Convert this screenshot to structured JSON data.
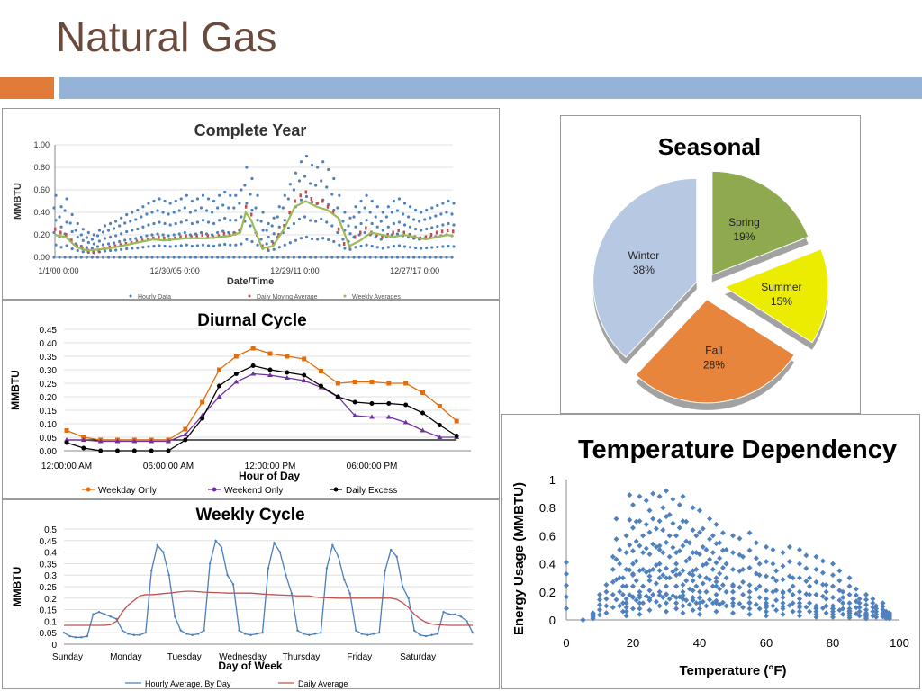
{
  "slide": {
    "title": "Natural Gas",
    "colors": {
      "title": "#6b4a3e",
      "accent_orange": "#e07b39",
      "accent_blue": "#95b3d7"
    }
  },
  "chart_data": [
    {
      "id": "complete-year",
      "type": "scatter",
      "title": "Complete Year",
      "xlabel": "Date/Time",
      "ylabel": "MMBTU",
      "ylim": [
        0,
        1
      ],
      "yticks": [
        "0.00",
        "0.20",
        "0.40",
        "0.60",
        "0.80",
        "1.00"
      ],
      "xticks": [
        "1/1/00 0:00",
        "12/30/05 0:00",
        "12/29/11 0:00",
        "12/27/17 0:00"
      ],
      "series": [
        {
          "name": "Hourly Data",
          "color": "#4f81bd",
          "x": [
            0,
            5,
            10,
            15,
            20,
            25,
            30,
            35,
            40,
            45,
            50,
            55,
            60,
            65,
            70,
            75,
            80,
            85,
            90,
            95,
            100,
            105,
            110,
            115,
            120,
            125,
            130,
            135,
            140,
            145,
            150,
            155,
            160,
            165,
            170,
            175,
            180,
            185,
            190,
            195,
            200,
            205,
            210,
            215,
            220,
            225,
            230,
            235,
            240,
            245,
            250,
            255,
            260,
            265,
            270,
            275,
            280,
            285,
            290,
            295,
            300,
            305,
            310,
            315,
            320,
            325,
            330,
            335,
            340,
            345,
            350,
            355,
            360,
            365
          ],
          "y": [
            0.55,
            0.45,
            0.52,
            0.38,
            0.3,
            0.25,
            0.22,
            0.2,
            0.24,
            0.28,
            0.3,
            0.32,
            0.35,
            0.38,
            0.4,
            0.42,
            0.45,
            0.48,
            0.5,
            0.52,
            0.5,
            0.48,
            0.5,
            0.52,
            0.55,
            0.5,
            0.52,
            0.55,
            0.52,
            0.5,
            0.55,
            0.58,
            0.55,
            0.55,
            0.6,
            0.8,
            0.7,
            0.55,
            0.4,
            0.3,
            0.35,
            0.45,
            0.55,
            0.65,
            0.75,
            0.85,
            0.9,
            0.82,
            0.8,
            0.85,
            0.78,
            0.7,
            0.55,
            0.4,
            0.35,
            0.45,
            0.5,
            0.55,
            0.5,
            0.45,
            0.4,
            0.45,
            0.5,
            0.52,
            0.48,
            0.45,
            0.42,
            0.4,
            0.42,
            0.44,
            0.46,
            0.48,
            0.5,
            0.48
          ]
        },
        {
          "name": "Daily Moving Average",
          "color": "#c0504d",
          "x": [
            0,
            5,
            10,
            15,
            20,
            25,
            30,
            35,
            40,
            45,
            50,
            55,
            60,
            65,
            70,
            75,
            80,
            85,
            90,
            95,
            100,
            105,
            110,
            115,
            120,
            125,
            130,
            135,
            140,
            145,
            150,
            155,
            160,
            165,
            170,
            175,
            180,
            185,
            190,
            195,
            200,
            205,
            210,
            215,
            220,
            225,
            230,
            235,
            240,
            245,
            250,
            255,
            260,
            265,
            270,
            275,
            280,
            285,
            290,
            295,
            300,
            305,
            310,
            315,
            320,
            325,
            330,
            335,
            340,
            345,
            350,
            355,
            360,
            365
          ],
          "y": [
            0.25,
            0.22,
            0.2,
            0.15,
            0.1,
            0.08,
            0.06,
            0.05,
            0.06,
            0.08,
            0.09,
            0.1,
            0.11,
            0.12,
            0.13,
            0.14,
            0.15,
            0.16,
            0.17,
            0.18,
            0.17,
            0.16,
            0.17,
            0.18,
            0.19,
            0.18,
            0.19,
            0.2,
            0.19,
            0.18,
            0.19,
            0.21,
            0.2,
            0.21,
            0.25,
            0.45,
            0.38,
            0.2,
            0.1,
            0.08,
            0.12,
            0.2,
            0.28,
            0.4,
            0.5,
            0.55,
            0.58,
            0.52,
            0.48,
            0.5,
            0.45,
            0.4,
            0.25,
            0.12,
            0.1,
            0.18,
            0.22,
            0.26,
            0.22,
            0.2,
            0.18,
            0.2,
            0.22,
            0.24,
            0.22,
            0.2,
            0.18,
            0.17,
            0.18,
            0.2,
            0.22,
            0.23,
            0.24,
            0.23
          ]
        },
        {
          "name": "Weekly Averages",
          "color": "#9bbb59",
          "x": [
            0,
            10,
            20,
            30,
            40,
            50,
            60,
            70,
            80,
            90,
            100,
            110,
            120,
            130,
            140,
            150,
            160,
            170,
            175,
            180,
            190,
            200,
            210,
            220,
            230,
            240,
            250,
            260,
            270,
            280,
            290,
            300,
            310,
            320,
            330,
            340,
            350,
            360,
            365
          ],
          "y": [
            0.2,
            0.18,
            0.09,
            0.06,
            0.07,
            0.08,
            0.1,
            0.12,
            0.14,
            0.16,
            0.15,
            0.16,
            0.17,
            0.17,
            0.17,
            0.18,
            0.19,
            0.22,
            0.4,
            0.33,
            0.08,
            0.1,
            0.25,
            0.45,
            0.5,
            0.45,
            0.42,
            0.35,
            0.1,
            0.15,
            0.22,
            0.2,
            0.18,
            0.2,
            0.18,
            0.16,
            0.18,
            0.2,
            0.19
          ]
        }
      ]
    },
    {
      "id": "diurnal",
      "type": "line",
      "title": "Diurnal Cycle",
      "xlabel": "Hour of Day",
      "ylabel": "MMBTU",
      "ylim": [
        0,
        0.45
      ],
      "yticks": [
        "0.00",
        "0.05",
        "0.10",
        "0.15",
        "0.20",
        "0.25",
        "0.30",
        "0.35",
        "0.40",
        "0.45"
      ],
      "xticks": [
        "12:00:00 AM",
        "06:00:00 AM",
        "12:00:00 PM",
        "06:00:00 PM"
      ],
      "x": [
        0,
        1,
        2,
        3,
        4,
        5,
        6,
        7,
        8,
        9,
        10,
        11,
        12,
        13,
        14,
        15,
        16,
        17,
        18,
        19,
        20,
        21,
        22,
        23
      ],
      "series": [
        {
          "name": "Weekday Only",
          "color": "#e46c0a",
          "marker": "square",
          "values": [
            0.075,
            0.05,
            0.04,
            0.04,
            0.04,
            0.04,
            0.04,
            0.08,
            0.18,
            0.3,
            0.35,
            0.38,
            0.36,
            0.35,
            0.34,
            0.295,
            0.25,
            0.255,
            0.255,
            0.25,
            0.25,
            0.215,
            0.165,
            0.11
          ]
        },
        {
          "name": "Weekend Only",
          "color": "#7030a0",
          "marker": "triangle",
          "values": [
            0.04,
            0.04,
            0.035,
            0.035,
            0.035,
            0.035,
            0.035,
            0.06,
            0.13,
            0.2,
            0.255,
            0.285,
            0.28,
            0.27,
            0.26,
            0.235,
            0.2,
            0.13,
            0.125,
            0.125,
            0.105,
            0.075,
            0.05,
            0.05
          ]
        },
        {
          "name": "Daily Excess",
          "color": "#000000",
          "marker": "circle",
          "values": [
            0.03,
            0.01,
            0.0,
            0.0,
            0.0,
            0.0,
            0.0,
            0.04,
            0.12,
            0.24,
            0.285,
            0.315,
            0.3,
            0.29,
            0.28,
            0.24,
            0.2,
            0.18,
            0.175,
            0.175,
            0.17,
            0.14,
            0.095,
            0.055
          ]
        }
      ]
    },
    {
      "id": "weekly",
      "type": "line",
      "title": "Weekly Cycle",
      "xlabel": "Day of Week",
      "ylabel": "MMBTU",
      "ylim": [
        0,
        0.5
      ],
      "yticks": [
        "0",
        "0.05",
        "0.1",
        "0.15",
        "0.2",
        "0.25",
        "0.3",
        "0.35",
        "0.4",
        "0.45",
        "0.5"
      ],
      "xticks": [
        "Sunday",
        "Monday",
        "Tuesday",
        "Wednesday",
        "Thursday",
        "Friday",
        "Saturday"
      ],
      "x": [
        0,
        0.2,
        0.4,
        0.6,
        0.8,
        1.0,
        1.2,
        1.4,
        1.6,
        1.8,
        2.0,
        2.2,
        2.4,
        2.6,
        2.8,
        3.0,
        3.2,
        3.4,
        3.6,
        3.8,
        4.0,
        4.2,
        4.4,
        4.6,
        4.8,
        5.0,
        5.2,
        5.4,
        5.6,
        5.8,
        6.0,
        6.2,
        6.4,
        6.6,
        6.8,
        7.0,
        7.2,
        7.4,
        7.6,
        7.8,
        8.0,
        8.2,
        8.4,
        8.6,
        8.8,
        9.0,
        9.2,
        9.4,
        9.6,
        9.8,
        10.0,
        10.2,
        10.4,
        10.6,
        10.8,
        11.0,
        11.2,
        11.4,
        11.6,
        11.8,
        12.0,
        12.2,
        12.4,
        12.6,
        12.8,
        13.0,
        13.2,
        13.4,
        13.6,
        13.8,
        14.0
      ],
      "series": [
        {
          "name": "Hourly Average, By Day",
          "color": "#4a7ebb",
          "marker": "dot",
          "values": [
            0.05,
            0.035,
            0.03,
            0.03,
            0.035,
            0.13,
            0.14,
            0.13,
            0.12,
            0.11,
            0.06,
            0.045,
            0.04,
            0.04,
            0.05,
            0.32,
            0.43,
            0.4,
            0.3,
            0.12,
            0.06,
            0.045,
            0.04,
            0.045,
            0.06,
            0.35,
            0.45,
            0.42,
            0.3,
            0.26,
            0.06,
            0.045,
            0.04,
            0.045,
            0.05,
            0.33,
            0.44,
            0.4,
            0.3,
            0.22,
            0.06,
            0.045,
            0.04,
            0.045,
            0.05,
            0.33,
            0.43,
            0.38,
            0.28,
            0.22,
            0.06,
            0.045,
            0.04,
            0.045,
            0.05,
            0.32,
            0.41,
            0.38,
            0.25,
            0.2,
            0.06,
            0.04,
            0.035,
            0.04,
            0.045,
            0.14,
            0.13,
            0.13,
            0.12,
            0.1,
            0.05
          ]
        },
        {
          "name": "Daily Average",
          "color": "#c0504d",
          "marker": "none",
          "values": [
            0.082,
            0.082,
            0.082,
            0.082,
            0.082,
            0.082,
            0.082,
            0.082,
            0.085,
            0.1,
            0.14,
            0.17,
            0.19,
            0.21,
            0.215,
            0.215,
            0.217,
            0.22,
            0.222,
            0.225,
            0.228,
            0.23,
            0.23,
            0.228,
            0.226,
            0.225,
            0.224,
            0.223,
            0.222,
            0.222,
            0.222,
            0.222,
            0.222,
            0.22,
            0.218,
            0.216,
            0.215,
            0.214,
            0.213,
            0.212,
            0.21,
            0.21,
            0.21,
            0.205,
            0.203,
            0.202,
            0.201,
            0.2,
            0.2,
            0.2,
            0.2,
            0.2,
            0.2,
            0.2,
            0.2,
            0.2,
            0.2,
            0.195,
            0.18,
            0.16,
            0.13,
            0.11,
            0.095,
            0.088,
            0.085,
            0.083,
            0.082,
            0.082,
            0.082,
            0.082,
            0.082
          ]
        }
      ]
    },
    {
      "id": "seasonal",
      "type": "pie",
      "title": "Seasonal",
      "slices": [
        {
          "label": "Spring",
          "value": 19,
          "display": "19%",
          "color": "#8faa4e"
        },
        {
          "label": "Summer",
          "value": 15,
          "display": "15%",
          "color": "#ecec00"
        },
        {
          "label": "Fall",
          "value": 28,
          "display": "28%",
          "color": "#e8853d"
        },
        {
          "label": "Winter",
          "value": 38,
          "display": "38%",
          "color": "#b7c8e3"
        }
      ]
    },
    {
      "id": "temperature",
      "type": "scatter",
      "title": "Temperature Dependency",
      "xlabel": "Temperature (°F)",
      "ylabel": "Energy Usage (MMBTU)",
      "xlim": [
        0,
        100
      ],
      "ylim": [
        0,
        1
      ],
      "xticks": [
        "0",
        "20",
        "40",
        "60",
        "80",
        "100"
      ],
      "yticks": [
        "0",
        "0.2",
        "0.4",
        "0.6",
        "0.8",
        "1"
      ],
      "series": [
        {
          "name": "",
          "color": "#4f81bd",
          "x": [
            0,
            5,
            8,
            10,
            12,
            14,
            15,
            16,
            17,
            18,
            18,
            19,
            20,
            20,
            21,
            22,
            22,
            23,
            24,
            25,
            25,
            26,
            27,
            28,
            28,
            29,
            30,
            30,
            31,
            32,
            33,
            33,
            34,
            35,
            35,
            36,
            37,
            38,
            38,
            39,
            40,
            40,
            41,
            42,
            43,
            44,
            45,
            45,
            46,
            47,
            48,
            50,
            50,
            52,
            53,
            55,
            55,
            57,
            58,
            60,
            60,
            62,
            63,
            65,
            65,
            67,
            68,
            70,
            70,
            72,
            73,
            75,
            75,
            77,
            78,
            80,
            80,
            82,
            83,
            85,
            85,
            87,
            88,
            90,
            90,
            92,
            93,
            95,
            96,
            97
          ],
          "y": [
            0.41,
            0.0,
            0.05,
            0.18,
            0.25,
            0.45,
            0.72,
            0.5,
            0.3,
            0.6,
            0.15,
            0.89,
            0.82,
            0.4,
            0.7,
            0.88,
            0.2,
            0.6,
            0.85,
            0.78,
            0.35,
            0.9,
            0.65,
            0.88,
            0.5,
            0.8,
            0.92,
            0.3,
            0.75,
            0.86,
            0.6,
            0.4,
            0.82,
            0.88,
            0.25,
            0.7,
            0.55,
            0.8,
            0.35,
            0.6,
            0.78,
            0.2,
            0.65,
            0.5,
            0.72,
            0.6,
            0.68,
            0.3,
            0.55,
            0.62,
            0.5,
            0.6,
            0.25,
            0.58,
            0.45,
            0.62,
            0.2,
            0.55,
            0.4,
            0.52,
            0.15,
            0.5,
            0.35,
            0.48,
            0.2,
            0.52,
            0.3,
            0.5,
            0.15,
            0.46,
            0.3,
            0.45,
            0.1,
            0.42,
            0.25,
            0.4,
            0.1,
            0.35,
            0.2,
            0.3,
            0.08,
            0.22,
            0.15,
            0.18,
            0.05,
            0.15,
            0.1,
            0.12,
            0.06,
            0.05
          ]
        }
      ]
    }
  ]
}
